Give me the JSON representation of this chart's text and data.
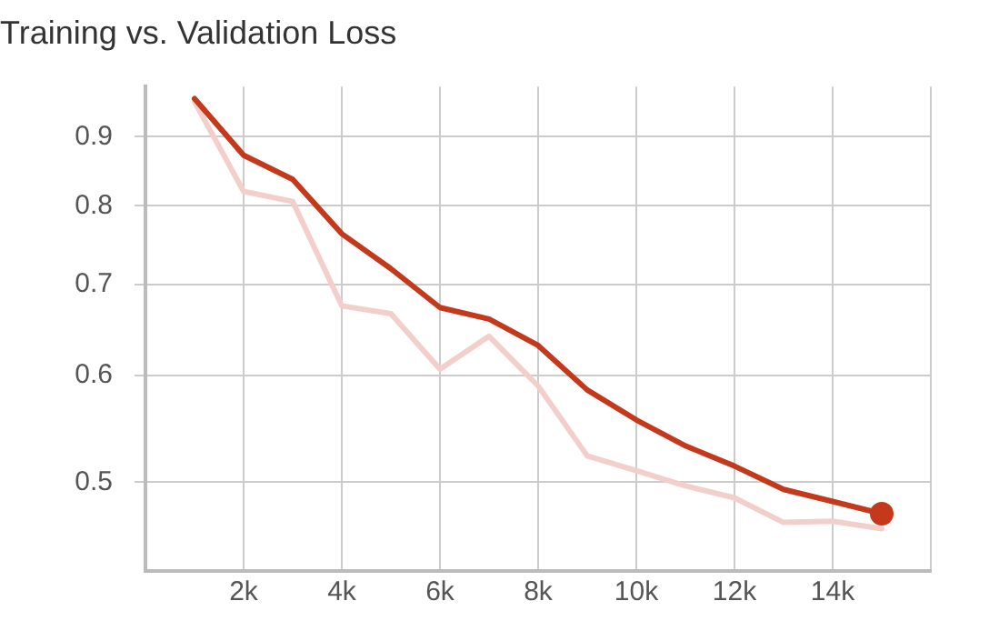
{
  "chart_data": {
    "type": "line",
    "title": "Training vs. Validation Loss",
    "log": "y",
    "grid": true,
    "legend": false,
    "marker": "none",
    "line_style": "solid",
    "xlim": [
      0,
      16000
    ],
    "xticks": [
      {
        "value": 2000,
        "label": "2k"
      },
      {
        "value": 4000,
        "label": "4k"
      },
      {
        "value": 6000,
        "label": "6k"
      },
      {
        "value": 8000,
        "label": "8k"
      },
      {
        "value": 10000,
        "label": "10k"
      },
      {
        "value": 12000,
        "label": "12k"
      },
      {
        "value": 14000,
        "label": "14k"
      },
      {
        "value": 16000,
        "label": null
      }
    ],
    "ylim": [
      0.43,
      0.98
    ],
    "yticks": [
      0.5,
      0.6,
      0.7,
      0.8,
      0.9
    ],
    "x": [
      1000,
      2000,
      3000,
      4000,
      5000,
      6000,
      7000,
      8000,
      9000,
      10000,
      11000,
      12000,
      13000,
      14000,
      15000
    ],
    "series": [
      {
        "color": "#f3cfcb",
        "values": [
          0.955,
          0.82,
          0.806,
          0.675,
          0.666,
          0.606,
          0.641,
          0.589,
          0.523,
          0.51,
          0.497,
          0.487,
          0.467,
          0.468,
          0.462
        ]
      },
      {
        "color": "#c4391b",
        "values": [
          0.96,
          0.872,
          0.837,
          0.763,
          0.719,
          0.673,
          0.66,
          0.631,
          0.585,
          0.556,
          0.532,
          0.514,
          0.494,
          0.484,
          0.474
        ]
      },
      {
        "type": "scatter",
        "marker": "circle",
        "color": "#c4391b",
        "values": [
          null,
          null,
          null,
          null,
          null,
          null,
          null,
          null,
          null,
          null,
          null,
          null,
          null,
          null,
          0.474
        ]
      }
    ]
  }
}
